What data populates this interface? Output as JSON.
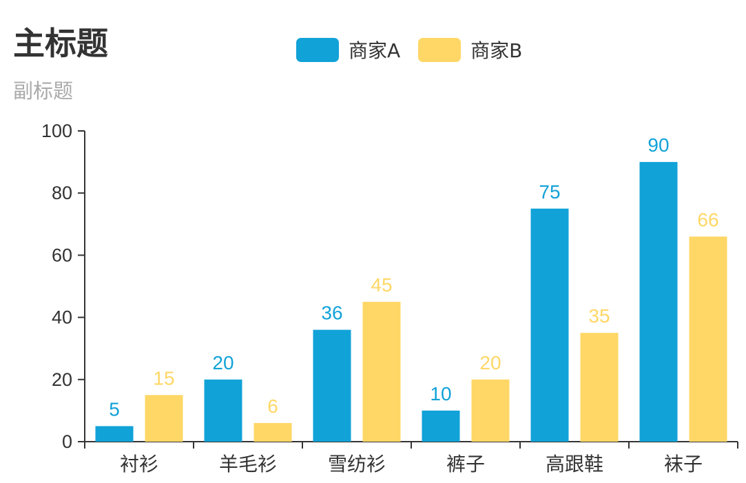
{
  "header": {
    "title": "主标题",
    "subtitle": "副标题"
  },
  "legend": [
    {
      "label": "商家A",
      "color": "#11a2d8"
    },
    {
      "label": "商家B",
      "color": "#ffd766"
    }
  ],
  "chart_data": {
    "type": "bar",
    "title": "主标题",
    "subtitle": "副标题",
    "categories": [
      "衬衫",
      "羊毛衫",
      "雪纺衫",
      "裤子",
      "高跟鞋",
      "袜子"
    ],
    "series": [
      {
        "name": "商家A",
        "color": "#11a2d8",
        "values": [
          5,
          20,
          36,
          10,
          75,
          90
        ]
      },
      {
        "name": "商家B",
        "color": "#ffd766",
        "values": [
          15,
          6,
          45,
          20,
          35,
          66
        ]
      }
    ],
    "xlabel": "",
    "ylabel": "",
    "ylim": [
      0,
      100
    ],
    "yticks": [
      0,
      20,
      40,
      60,
      80,
      100
    ],
    "grid": false,
    "legend_position": "top",
    "data_labels": true
  }
}
